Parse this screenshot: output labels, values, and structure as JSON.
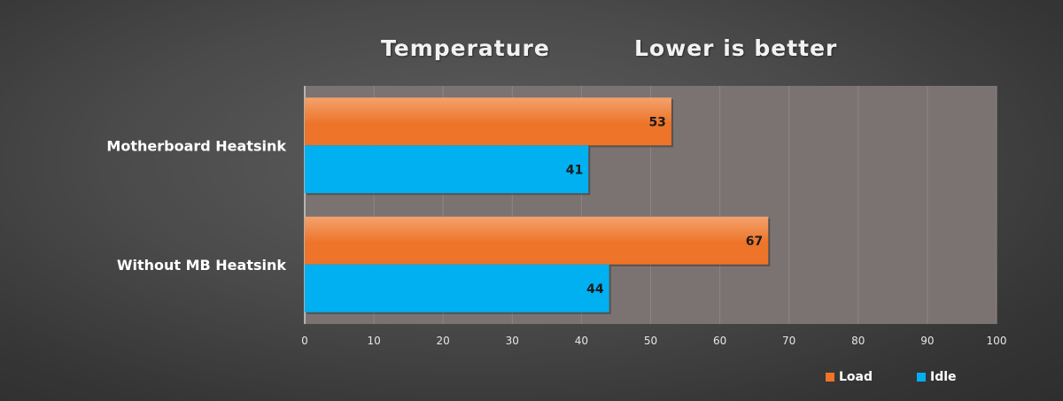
{
  "chart_data": {
    "type": "bar",
    "orientation": "horizontal",
    "title": "Temperature",
    "subtitle": "Lower is better",
    "categories": [
      "Motherboard Heatsink",
      "Without MB Heatsink"
    ],
    "series": [
      {
        "name": "Load",
        "values": [
          53,
          67
        ],
        "color": "#ed7428"
      },
      {
        "name": "Idle",
        "values": [
          41,
          44
        ],
        "color": "#00b0f0"
      }
    ],
    "xlim": [
      0,
      100
    ],
    "xticks": [
      "0",
      "10",
      "20",
      "30",
      "40",
      "50",
      "60",
      "70",
      "80",
      "90",
      "100"
    ],
    "xlabel": "",
    "ylabel": "",
    "grid": true,
    "plot_background": "#7b7372",
    "legend_position": "bottom-right",
    "data_labels": true
  }
}
